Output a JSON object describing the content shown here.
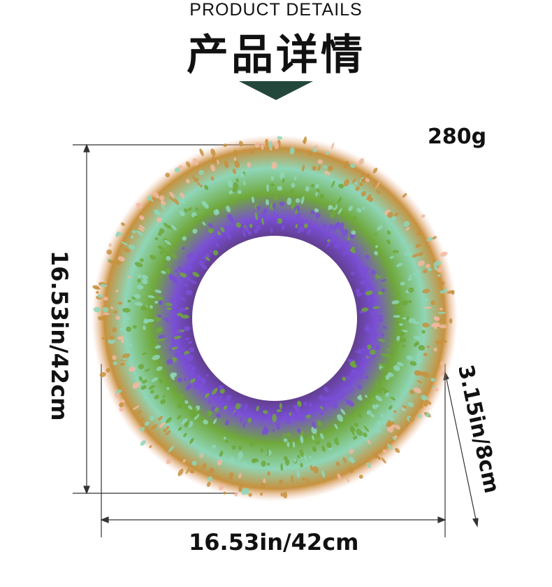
{
  "header": {
    "title_en": "PRODUCT DETAILS",
    "title_zh": "产品详情"
  },
  "product": {
    "weight": "280g",
    "diameter_label": "16.53in/42cm",
    "height_label": "16.53in/42cm",
    "depth_label": "3.15in/8cm"
  },
  "colors": {
    "accent": "#24473c",
    "foliage_green": "#6fa83a",
    "foliage_mint": "#8fd6b8",
    "flower_purple": "#7a4fd6",
    "flower_pink": "#f2b9a0",
    "stem_brown": "#c8913e"
  },
  "image": {
    "subject": "wreath-photo"
  }
}
